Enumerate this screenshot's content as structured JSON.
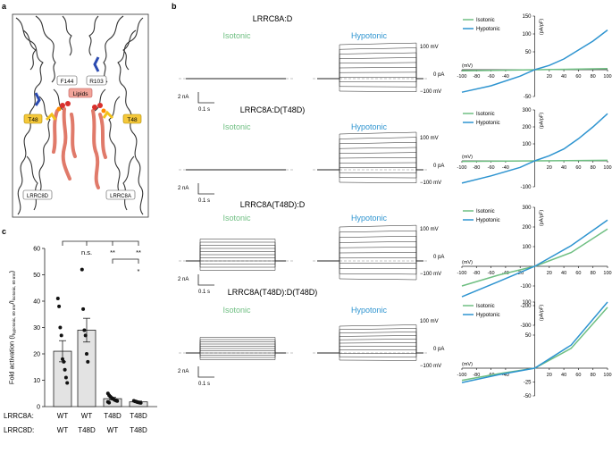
{
  "panels": {
    "a": "a",
    "b": "b",
    "c": "c"
  },
  "panel_a": {
    "residues": [
      "F144",
      "R103",
      "T48",
      "T48"
    ],
    "lipids": "Lipids",
    "chains": [
      "LRRC8D",
      "LRRC8A"
    ]
  },
  "labels": {
    "isotonic": "Isotonic",
    "hypotonic": "Hypotonic",
    "v100": "100 mV",
    "v0": "0 pA",
    "vm100": "−100 mV",
    "scale_y": "2 nA",
    "scale_x": "0.1 s",
    "iv_x_unit": "(mV)",
    "iv_y_unit": "(pA/pF)"
  },
  "rows": [
    {
      "title": "LRRC8A:D",
      "iv_ticks_y": [
        "150",
        "100",
        "50",
        "-50"
      ]
    },
    {
      "title": "LRRC8A:D(T48D)",
      "iv_ticks_y": [
        "300",
        "200",
        "100",
        "-100"
      ]
    },
    {
      "title": "LRRC8A(T48D):D",
      "iv_ticks_y": [
        "300",
        "200",
        "100",
        "-100",
        "-200",
        "-300"
      ]
    },
    {
      "title": "LRRC8A(T48D):D(T48D)",
      "iv_ticks_y": [
        "100",
        "50",
        "-25",
        "-50"
      ]
    }
  ],
  "iv_ticks_x": [
    "-100",
    "-80",
    "-60",
    "-40",
    "20",
    "40",
    "60",
    "80",
    "100"
  ],
  "iv_ticks_x_row3": [
    "-100",
    "-80",
    "-60",
    "-40",
    "-20",
    "20",
    "40",
    "60",
    "80",
    "100"
  ],
  "chart_data": {
    "type": "bar",
    "ylabel": "Fold activation (I",
    "ylabel_sub": "hypotonic, 60 mV",
    "ylabel_mid": "/I",
    "ylabel_sub2": "isotonic, 60 mV",
    "ylabel_end": ")",
    "ylim": [
      0,
      60
    ],
    "yticks": [
      "0",
      "10",
      "20",
      "30",
      "40",
      "50",
      "60"
    ],
    "categories": [
      "WT/WT",
      "WT/T48D",
      "T48D/WT",
      "T48D/T48D"
    ],
    "row_labels": {
      "a": "LRRC8A:",
      "d": "LRRC8D:"
    },
    "lrrc8a": [
      "WT",
      "WT",
      "T48D",
      "T48D"
    ],
    "lrrc8d": [
      "WT",
      "T48D",
      "WT",
      "T48D"
    ],
    "values": [
      21,
      29,
      3,
      1.8
    ],
    "sem": [
      4,
      4.5,
      0.5,
      0.3
    ],
    "points": [
      [
        41,
        38,
        30,
        27,
        18,
        17,
        14,
        11,
        9
      ],
      [
        52,
        37,
        29,
        27,
        20,
        17
      ],
      [
        5,
        4.3,
        3.8,
        3.4,
        3.1,
        2.8,
        2.5,
        2.3,
        2.1,
        1.8,
        1.5
      ],
      [
        2.2,
        2.0,
        1.9,
        1.7,
        1.6,
        1.5,
        1.4
      ]
    ],
    "significance": [
      "n.s.",
      "**",
      "**",
      "*"
    ]
  }
}
